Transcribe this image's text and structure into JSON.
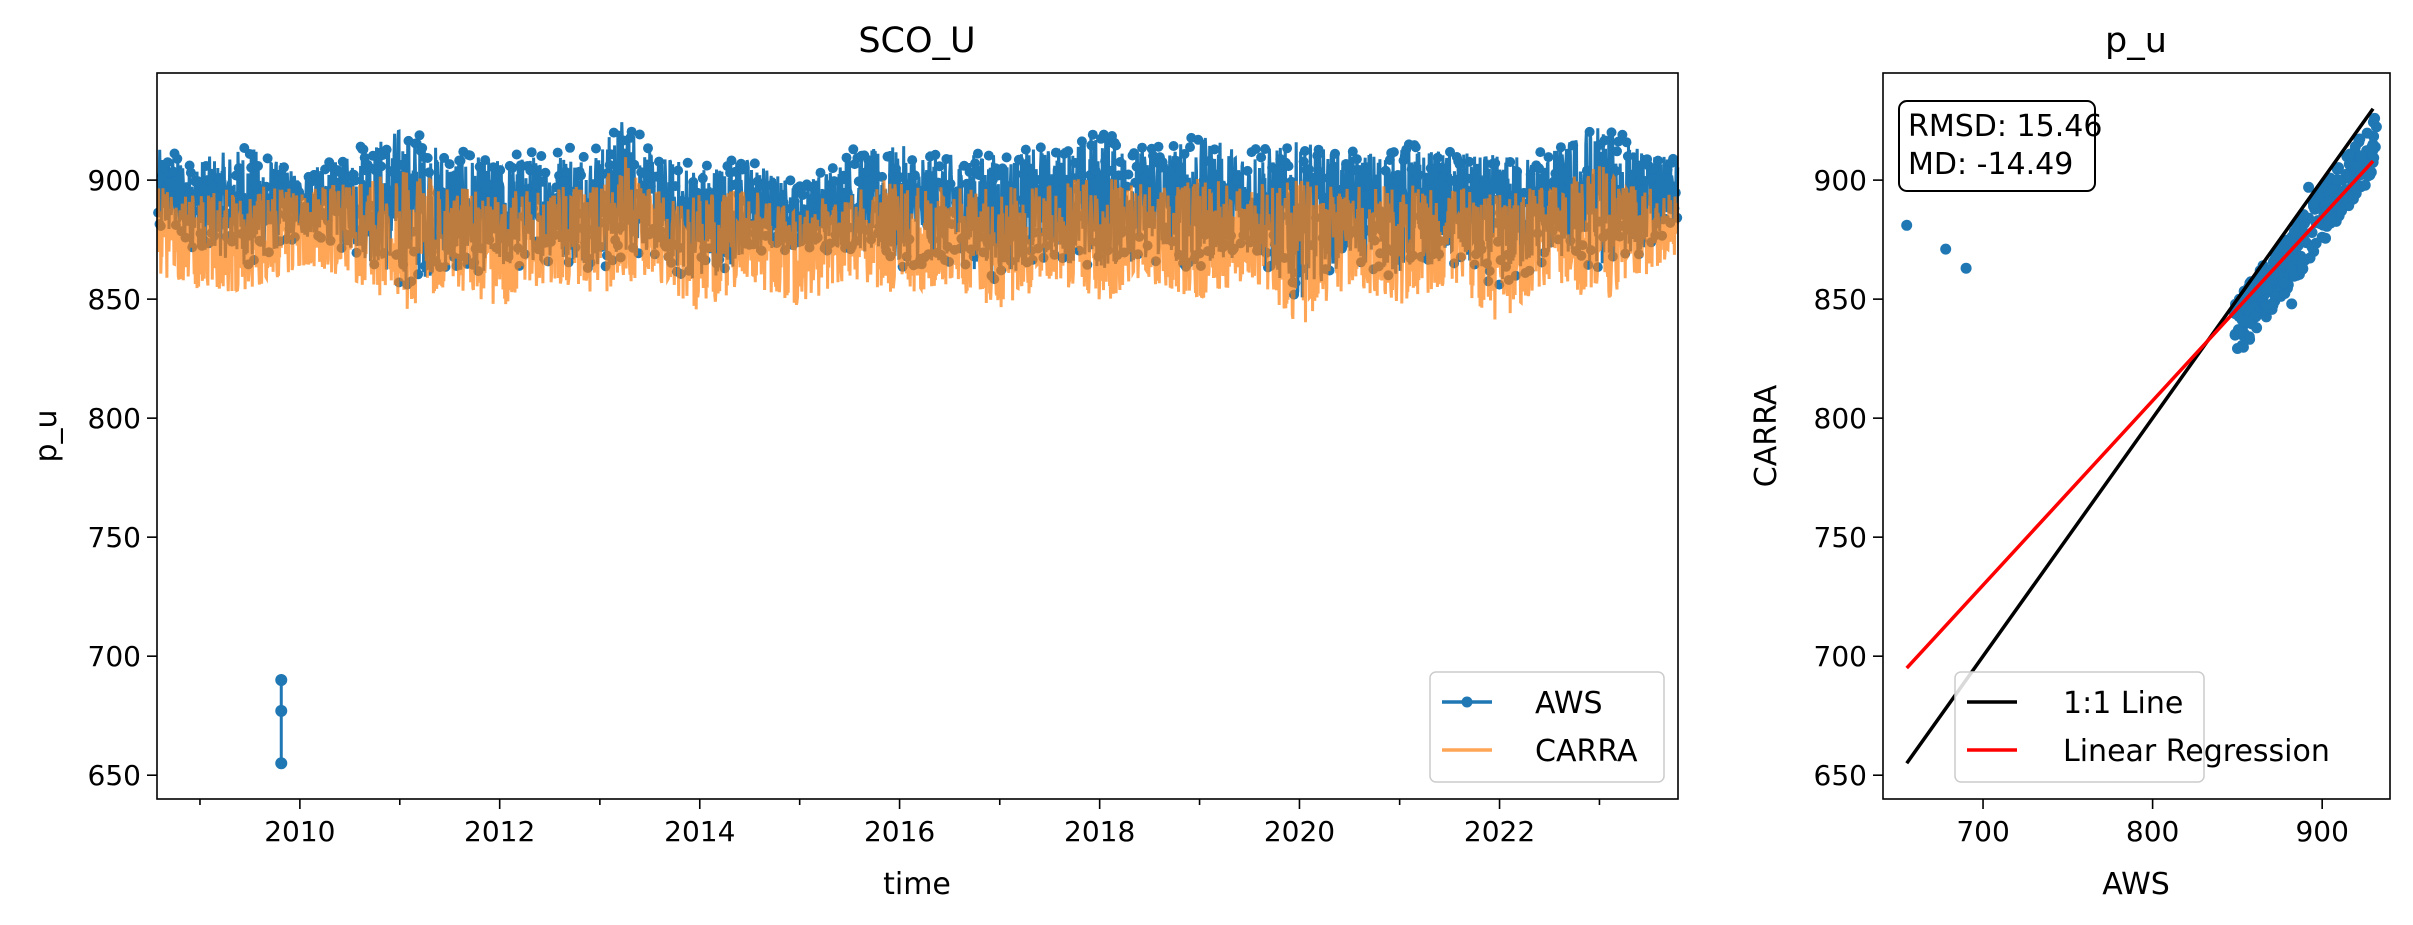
{
  "chart_data": [
    {
      "type": "line",
      "title": "SCO_U",
      "xlabel": "time",
      "ylabel": "p_u",
      "xlim": [
        "2008-07-28",
        "2023-10-15"
      ],
      "ylim": [
        640,
        945
      ],
      "x_ticks": [
        "2010",
        "2012",
        "2014",
        "2016",
        "2018",
        "2020",
        "2022"
      ],
      "y_ticks": [
        "650",
        "700",
        "750",
        "800",
        "850",
        "900"
      ],
      "legend_loc": "lower right",
      "series": [
        {
          "name": "AWS",
          "color": "#1f77b4",
          "marker": "o",
          "outliers": [
            {
              "x": "2009-10-25",
              "y": 690
            },
            {
              "x": "2009-10-25",
              "y": 677
            },
            {
              "x": "2009-10-25",
              "y": 655
            }
          ],
          "envelope": [
            {
              "x": "2008-08-01",
              "lo": 876,
              "hi": 914
            },
            {
              "x": "2009-01-01",
              "lo": 870,
              "hi": 910
            },
            {
              "x": "2009-07-01",
              "lo": 862,
              "hi": 916
            },
            {
              "x": "2010-01-01",
              "lo": 875,
              "hi": 904
            },
            {
              "x": "2010-07-01",
              "lo": 870,
              "hi": 911
            },
            {
              "x": "2011-01-01",
              "lo": 855,
              "hi": 925
            },
            {
              "x": "2011-07-01",
              "lo": 860,
              "hi": 913
            },
            {
              "x": "2012-01-01",
              "lo": 860,
              "hi": 910
            },
            {
              "x": "2012-07-01",
              "lo": 866,
              "hi": 913
            },
            {
              "x": "2013-01-01",
              "lo": 862,
              "hi": 915
            },
            {
              "x": "2013-04-01",
              "lo": 868,
              "hi": 930
            },
            {
              "x": "2013-07-01",
              "lo": 869,
              "hi": 913
            },
            {
              "x": "2014-01-01",
              "lo": 855,
              "hi": 908
            },
            {
              "x": "2014-07-01",
              "lo": 866,
              "hi": 911
            },
            {
              "x": "2015-01-01",
              "lo": 870,
              "hi": 898
            },
            {
              "x": "2015-07-01",
              "lo": 870,
              "hi": 913
            },
            {
              "x": "2016-01-01",
              "lo": 862,
              "hi": 916
            },
            {
              "x": "2016-07-01",
              "lo": 865,
              "hi": 912
            },
            {
              "x": "2017-01-01",
              "lo": 857,
              "hi": 913
            },
            {
              "x": "2017-07-01",
              "lo": 866,
              "hi": 915
            },
            {
              "x": "2018-01-01",
              "lo": 860,
              "hi": 922
            },
            {
              "x": "2018-07-01",
              "lo": 866,
              "hi": 914
            },
            {
              "x": "2019-01-01",
              "lo": 862,
              "hi": 920
            },
            {
              "x": "2019-07-01",
              "lo": 868,
              "hi": 914
            },
            {
              "x": "2020-01-01",
              "lo": 848,
              "hi": 918
            },
            {
              "x": "2020-07-01",
              "lo": 866,
              "hi": 913
            },
            {
              "x": "2021-01-01",
              "lo": 858,
              "hi": 916
            },
            {
              "x": "2021-07-01",
              "lo": 866,
              "hi": 913
            },
            {
              "x": "2022-01-01",
              "lo": 855,
              "hi": 912
            },
            {
              "x": "2022-07-01",
              "lo": 866,
              "hi": 913
            },
            {
              "x": "2023-01-01",
              "lo": 862,
              "hi": 927
            },
            {
              "x": "2023-07-01",
              "lo": 870,
              "hi": 912
            },
            {
              "x": "2023-10-15",
              "lo": 880,
              "hi": 910
            }
          ]
        },
        {
          "name": "CARRA",
          "color": "#ff7f0e",
          "envelope": [
            {
              "x": "2008-08-01",
              "lo": 860,
              "hi": 898
            },
            {
              "x": "2009-01-01",
              "lo": 850,
              "hi": 895
            },
            {
              "x": "2009-07-01",
              "lo": 853,
              "hi": 900
            },
            {
              "x": "2010-01-01",
              "lo": 862,
              "hi": 897
            },
            {
              "x": "2010-07-01",
              "lo": 858,
              "hi": 900
            },
            {
              "x": "2011-01-01",
              "lo": 842,
              "hi": 908
            },
            {
              "x": "2011-07-01",
              "lo": 855,
              "hi": 900
            },
            {
              "x": "2012-01-01",
              "lo": 845,
              "hi": 896
            },
            {
              "x": "2012-07-01",
              "lo": 856,
              "hi": 898
            },
            {
              "x": "2013-01-01",
              "lo": 850,
              "hi": 900
            },
            {
              "x": "2013-04-01",
              "lo": 855,
              "hi": 912
            },
            {
              "x": "2013-07-01",
              "lo": 858,
              "hi": 898
            },
            {
              "x": "2014-01-01",
              "lo": 843,
              "hi": 895
            },
            {
              "x": "2014-07-01",
              "lo": 856,
              "hi": 898
            },
            {
              "x": "2015-01-01",
              "lo": 845,
              "hi": 888
            },
            {
              "x": "2015-07-01",
              "lo": 858,
              "hi": 900
            },
            {
              "x": "2016-01-01",
              "lo": 850,
              "hi": 902
            },
            {
              "x": "2016-07-01",
              "lo": 855,
              "hi": 898
            },
            {
              "x": "2017-01-01",
              "lo": 843,
              "hi": 898
            },
            {
              "x": "2017-07-01",
              "lo": 856,
              "hi": 900
            },
            {
              "x": "2018-01-01",
              "lo": 847,
              "hi": 904
            },
            {
              "x": "2018-07-01",
              "lo": 855,
              "hi": 899
            },
            {
              "x": "2019-01-01",
              "lo": 848,
              "hi": 903
            },
            {
              "x": "2019-07-01",
              "lo": 857,
              "hi": 899
            },
            {
              "x": "2020-01-01",
              "lo": 836,
              "hi": 902
            },
            {
              "x": "2020-07-01",
              "lo": 855,
              "hi": 898
            },
            {
              "x": "2021-01-01",
              "lo": 845,
              "hi": 900
            },
            {
              "x": "2021-07-01",
              "lo": 856,
              "hi": 898
            },
            {
              "x": "2022-01-01",
              "lo": 838,
              "hi": 897
            },
            {
              "x": "2022-07-01",
              "lo": 856,
              "hi": 898
            },
            {
              "x": "2023-01-01",
              "lo": 846,
              "hi": 908
            },
            {
              "x": "2023-07-01",
              "lo": 860,
              "hi": 898
            },
            {
              "x": "2023-10-15",
              "lo": 868,
              "hi": 895
            }
          ]
        }
      ]
    },
    {
      "type": "scatter",
      "title": "p_u",
      "xlabel": "AWS",
      "ylabel": "CARRA",
      "xlim": [
        641,
        940
      ],
      "ylim": [
        640,
        945
      ],
      "x_ticks": [
        "700",
        "800",
        "900"
      ],
      "y_ticks": [
        "650",
        "700",
        "750",
        "800",
        "850",
        "900"
      ],
      "legend_loc": "lower right",
      "stats": {
        "rmsd": "RMSD: 15.46",
        "md": "MD: -14.49"
      },
      "points_color": "#1f77b4",
      "points": [
        {
          "x": 655,
          "y": 881
        },
        {
          "x": 678,
          "y": 871
        },
        {
          "x": 690,
          "y": 863
        },
        {
          "x": 850,
          "y": 836
        },
        {
          "x": 855,
          "y": 840
        },
        {
          "x": 860,
          "y": 845
        },
        {
          "x": 863,
          "y": 848
        },
        {
          "x": 866,
          "y": 852
        },
        {
          "x": 868,
          "y": 858
        },
        {
          "x": 870,
          "y": 862
        },
        {
          "x": 872,
          "y": 856
        },
        {
          "x": 874,
          "y": 866
        },
        {
          "x": 876,
          "y": 870
        },
        {
          "x": 878,
          "y": 862
        },
        {
          "x": 880,
          "y": 872
        },
        {
          "x": 882,
          "y": 848
        },
        {
          "x": 884,
          "y": 876
        },
        {
          "x": 886,
          "y": 868
        },
        {
          "x": 888,
          "y": 880
        },
        {
          "x": 890,
          "y": 874
        },
        {
          "x": 892,
          "y": 884
        },
        {
          "x": 894,
          "y": 878
        },
        {
          "x": 896,
          "y": 888
        },
        {
          "x": 898,
          "y": 882
        },
        {
          "x": 900,
          "y": 892
        },
        {
          "x": 902,
          "y": 886
        },
        {
          "x": 904,
          "y": 894
        },
        {
          "x": 906,
          "y": 890
        },
        {
          "x": 908,
          "y": 898
        },
        {
          "x": 910,
          "y": 893
        },
        {
          "x": 912,
          "y": 900
        },
        {
          "x": 914,
          "y": 896
        },
        {
          "x": 916,
          "y": 903
        },
        {
          "x": 918,
          "y": 899
        },
        {
          "x": 920,
          "y": 906
        },
        {
          "x": 922,
          "y": 902
        },
        {
          "x": 925,
          "y": 908
        },
        {
          "x": 928,
          "y": 912
        },
        {
          "x": 930,
          "y": 915
        },
        {
          "x": 895,
          "y": 870
        },
        {
          "x": 900,
          "y": 876
        },
        {
          "x": 905,
          "y": 882
        },
        {
          "x": 910,
          "y": 885
        },
        {
          "x": 885,
          "y": 860
        },
        {
          "x": 880,
          "y": 856
        },
        {
          "x": 875,
          "y": 852
        },
        {
          "x": 865,
          "y": 845
        },
        {
          "x": 858,
          "y": 842
        },
        {
          "x": 892,
          "y": 897
        },
        {
          "x": 898,
          "y": 895
        },
        {
          "x": 903,
          "y": 900
        }
      ],
      "lines": [
        {
          "name": "1:1 Line",
          "color": "#000000",
          "from": [
            655,
            655
          ],
          "to": [
            930,
            930
          ]
        },
        {
          "name": "Linear Regression",
          "color": "#ff0000",
          "from": [
            655,
            695
          ],
          "to": [
            930,
            908
          ]
        }
      ]
    }
  ]
}
